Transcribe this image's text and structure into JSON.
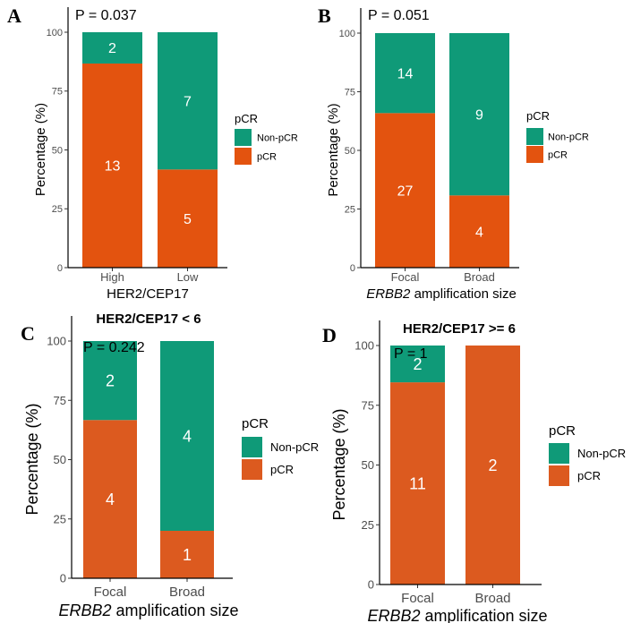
{
  "colors": {
    "non_pcr": "#0f9a78",
    "pcr": "#e3530f",
    "pcr_alt": "#dc5a1f",
    "axis": "#000000"
  },
  "chart_data": [
    {
      "panel": "A",
      "type": "bar",
      "stacked": true,
      "title": "",
      "p_value": "P = 0.037",
      "categories": [
        "High",
        "Low"
      ],
      "xlabel": "HER2/CEP17",
      "xlabel_italic": "",
      "ylabel": "Percentage (%)",
      "ylim": [
        0,
        100
      ],
      "yticks": [
        "0",
        "25",
        "50",
        "75",
        "100"
      ],
      "legend": {
        "title": "pCR",
        "entries": [
          "Non-pCR",
          "pCR"
        ]
      },
      "series": [
        {
          "name": "pCR",
          "values": [
            86.7,
            41.7
          ],
          "counts": [
            "13",
            "5"
          ]
        },
        {
          "name": "Non-pCR",
          "values": [
            13.3,
            58.3
          ],
          "counts": [
            "2",
            "7"
          ]
        }
      ]
    },
    {
      "panel": "B",
      "type": "bar",
      "stacked": true,
      "title": "",
      "p_value": "P = 0.051",
      "categories": [
        "Focal",
        "Broad"
      ],
      "xlabel": " amplification size",
      "xlabel_italic": "ERBB2",
      "ylabel": "Percentage (%)",
      "ylim": [
        0,
        100
      ],
      "yticks": [
        "0",
        "25",
        "50",
        "75",
        "100"
      ],
      "legend": {
        "title": "pCR",
        "entries": [
          "Non-pCR",
          "pCR"
        ]
      },
      "series": [
        {
          "name": "pCR",
          "values": [
            65.9,
            30.8
          ],
          "counts": [
            "27",
            "4"
          ]
        },
        {
          "name": "Non-pCR",
          "values": [
            34.1,
            69.2
          ],
          "counts": [
            "14",
            "9"
          ]
        }
      ]
    },
    {
      "panel": "C",
      "type": "bar",
      "stacked": true,
      "title": "HER2/CEP17 < 6",
      "p_value": "P = 0.242",
      "categories": [
        "Focal",
        "Broad"
      ],
      "xlabel": " amplification size",
      "xlabel_italic": "ERBB2",
      "ylabel": "Percentage (%)",
      "ylim": [
        0,
        100
      ],
      "yticks": [
        "0",
        "25",
        "50",
        "75",
        "100"
      ],
      "legend": {
        "title": "pCR",
        "entries": [
          "Non-pCR",
          "pCR"
        ]
      },
      "series": [
        {
          "name": "pCR",
          "values": [
            66.7,
            20.0
          ],
          "counts": [
            "4",
            "1"
          ]
        },
        {
          "name": "Non-pCR",
          "values": [
            33.3,
            80.0
          ],
          "counts": [
            "2",
            "4"
          ]
        }
      ]
    },
    {
      "panel": "D",
      "type": "bar",
      "stacked": true,
      "title": "HER2/CEP17 >= 6",
      "p_value": "P = 1",
      "categories": [
        "Focal",
        "Broad"
      ],
      "xlabel": " amplification size",
      "xlabel_italic": "ERBB2",
      "ylabel": "Percentage (%)",
      "ylim": [
        0,
        100
      ],
      "yticks": [
        "0",
        "25",
        "50",
        "75",
        "100"
      ],
      "legend": {
        "title": "pCR",
        "entries": [
          "Non-pCR",
          "pCR"
        ]
      },
      "series": [
        {
          "name": "pCR",
          "values": [
            84.6,
            100.0
          ],
          "counts": [
            "11",
            "2"
          ]
        },
        {
          "name": "Non-pCR",
          "values": [
            15.4,
            0.0
          ],
          "counts": [
            "2",
            ""
          ]
        }
      ]
    }
  ]
}
